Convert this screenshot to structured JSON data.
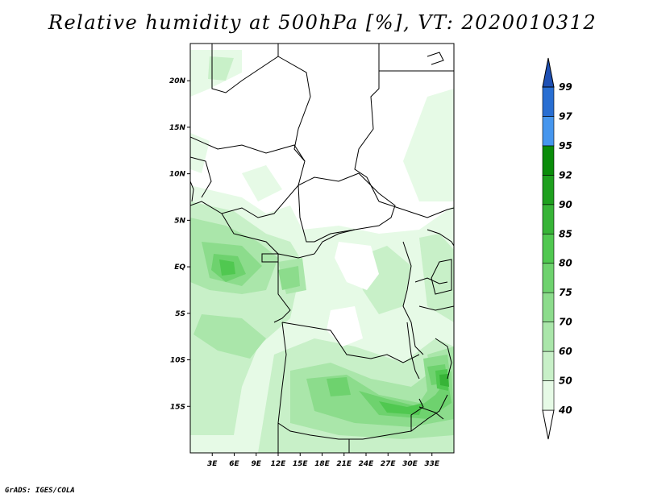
{
  "title": "Relative humidity at 500hPa [%], VT: 2020010312",
  "credit": "GrADS: IGES/COLA",
  "map": {
    "lon_range": [
      0,
      36
    ],
    "lat_range": [
      -20,
      24
    ],
    "lat_ticks": [
      {
        "value": 20,
        "label": "20N"
      },
      {
        "value": 15,
        "label": "15N"
      },
      {
        "value": 10,
        "label": "10N"
      },
      {
        "value": 5,
        "label": "5N"
      },
      {
        "value": 0,
        "label": "EQ"
      },
      {
        "value": -5,
        "label": "5S"
      },
      {
        "value": -10,
        "label": "10S"
      },
      {
        "value": -15,
        "label": "15S"
      }
    ],
    "lon_ticks": [
      {
        "value": 3,
        "label": "3E"
      },
      {
        "value": 6,
        "label": "6E"
      },
      {
        "value": 9,
        "label": "9E"
      },
      {
        "value": 12,
        "label": "12E"
      },
      {
        "value": 15,
        "label": "15E"
      },
      {
        "value": 18,
        "label": "18E"
      },
      {
        "value": 21,
        "label": "21E"
      },
      {
        "value": 24,
        "label": "24E"
      },
      {
        "value": 27,
        "label": "27E"
      },
      {
        "value": 30,
        "label": "30E"
      },
      {
        "value": 33,
        "label": "33E"
      }
    ]
  },
  "colorbar": {
    "levels": [
      "40",
      "50",
      "60",
      "70",
      "75",
      "80",
      "85",
      "90",
      "92",
      "95",
      "97",
      "99"
    ],
    "colors": [
      "#ffffff",
      "#e6fae6",
      "#c8f0c8",
      "#aae6aa",
      "#8cdc8c",
      "#6ed26e",
      "#50c850",
      "#37b437",
      "#1ea01e",
      "#0a8c0a",
      "#4696ee",
      "#286ed2",
      "#1e50b4"
    ]
  }
}
